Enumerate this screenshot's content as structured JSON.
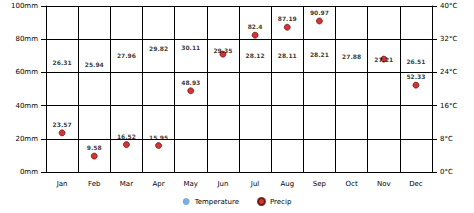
{
  "chart_data": {
    "type": "scatter",
    "categories": [
      "Jan",
      "Feb",
      "Mar",
      "Apr",
      "May",
      "Jun",
      "Jul",
      "Aug",
      "Sep",
      "Oct",
      "Nov",
      "Dec"
    ],
    "series": [
      {
        "name": "Temperature",
        "color": "#5b9bd5",
        "axis": "y2",
        "marker": "none",
        "values": [
          26.31,
          25.94,
          27.96,
          29.82,
          30.11,
          29.35,
          28.12,
          28.11,
          28.21,
          27.88,
          27.21,
          26.51
        ]
      },
      {
        "name": "Precip",
        "color": "#cc0000",
        "marker": "circle",
        "values": [
          23.57,
          9.58,
          16.52,
          15.95,
          48.93,
          71,
          82.4,
          87.19,
          90.97,
          null,
          68,
          52.33
        ],
        "value_labels": [
          "23.57",
          "9.58",
          "16.52",
          "15.95",
          "48.93",
          null,
          "82.4",
          "87.19",
          "90.97",
          null,
          null,
          "52.33"
        ]
      }
    ],
    "ylim": [
      0,
      100
    ],
    "yticks": [
      {
        "value": 0,
        "label": "0mm"
      },
      {
        "value": 20,
        "label": "20mm"
      },
      {
        "value": 40,
        "label": "40mm"
      },
      {
        "value": 60,
        "label": "60mm"
      },
      {
        "value": 80,
        "label": "80mm"
      },
      {
        "value": 100,
        "label": "100mm"
      }
    ],
    "y2lim": [
      0,
      40
    ],
    "y2ticks": [
      {
        "value": 0,
        "label": "0°C"
      },
      {
        "value": 8,
        "label": "8°C"
      },
      {
        "value": 16,
        "label": "16°C"
      },
      {
        "value": 24,
        "label": "24°C"
      },
      {
        "value": 32,
        "label": "32°C"
      },
      {
        "value": 40,
        "label": "40°C"
      }
    ],
    "grid": true,
    "legend": "bottom",
    "data_labels": true
  }
}
